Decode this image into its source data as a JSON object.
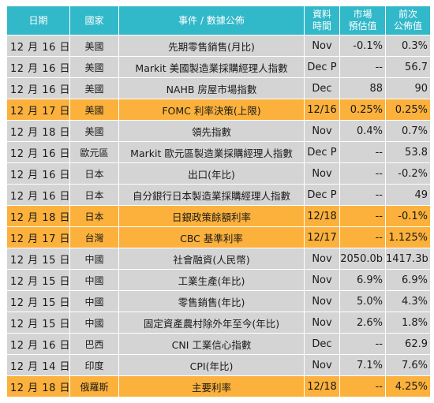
{
  "header": {
    "date": "日期",
    "country": "國家",
    "event": "事件 / 數據公佈",
    "period_line1": "資料",
    "period_line2": "時間",
    "forecast_line1": "市場",
    "forecast_line2": "預估值",
    "previous_line1": "前次",
    "previous_line2": "公佈值"
  },
  "colors": {
    "header_bg": "#31b8c9",
    "row_bg": "#d4d4d4",
    "highlight_bg": "#fbb13c"
  },
  "rows": [
    {
      "date": "12 月 16 日",
      "country": "美國",
      "event": "先期零售銷售(月比)",
      "period": "Nov",
      "forecast": "-0.1%",
      "previous": "0.3%",
      "highlight": false
    },
    {
      "date": "12 月 16 日",
      "country": "美國",
      "event": "Markit 美國製造業採購經理人指數",
      "period": "Dec P",
      "forecast": "--",
      "previous": "56.7",
      "highlight": false
    },
    {
      "date": "12 月 16 日",
      "country": "美國",
      "event": "NAHB 房屋市場指數",
      "period": "Dec",
      "forecast": "88",
      "previous": "90",
      "highlight": false
    },
    {
      "date": "12 月 17 日",
      "country": "美國",
      "event": "FOMC 利率決策(上限)",
      "period": "12/16",
      "forecast": "0.25%",
      "previous": "0.25%",
      "highlight": true
    },
    {
      "date": "12 月 18 日",
      "country": "美國",
      "event": "領先指數",
      "period": "Nov",
      "forecast": "0.4%",
      "previous": "0.7%",
      "highlight": false
    },
    {
      "date": "12 月 16 日",
      "country": "歐元區",
      "event": "Markit 歐元區製造業採購經理人指數",
      "period": "Dec P",
      "forecast": "--",
      "previous": "53.8",
      "highlight": false
    },
    {
      "date": "12 月 16 日",
      "country": "日本",
      "event": "出口(年比)",
      "period": "Nov",
      "forecast": "--",
      "previous": "-0.2%",
      "highlight": false
    },
    {
      "date": "12 月 16 日",
      "country": "日本",
      "event": "自分銀行日本製造業採購經理人指數",
      "period": "Dec P",
      "forecast": "--",
      "previous": "49",
      "highlight": false
    },
    {
      "date": "12 月 18 日",
      "country": "日本",
      "event": "日銀政策餘額利率",
      "period": "12/18",
      "forecast": "--",
      "previous": "-0.1%",
      "highlight": true
    },
    {
      "date": "12 月 17 日",
      "country": "台灣",
      "event": "CBC 基準利率",
      "period": "12/17",
      "forecast": "--",
      "previous": "1.125%",
      "highlight": true
    },
    {
      "date": "12 月 15 日",
      "country": "中國",
      "event": "社會融資(人民幣)",
      "period": "Nov",
      "forecast": "2050.0b",
      "previous": "1417.3b",
      "highlight": false
    },
    {
      "date": "12 月 15 日",
      "country": "中國",
      "event": "工業生產(年比)",
      "period": "Nov",
      "forecast": "6.9%",
      "previous": "6.9%",
      "highlight": false
    },
    {
      "date": "12 月 15 日",
      "country": "中國",
      "event": "零售銷售(年比)",
      "period": "Nov",
      "forecast": "5.0%",
      "previous": "4.3%",
      "highlight": false
    },
    {
      "date": "12 月 15 日",
      "country": "中國",
      "event": "固定資產農村除外年至今(年比)",
      "period": "Nov",
      "forecast": "2.6%",
      "previous": "1.8%",
      "highlight": false
    },
    {
      "date": "12 月 16 日",
      "country": "巴西",
      "event": "CNI 工業信心指數",
      "period": "Dec",
      "forecast": "--",
      "previous": "62.9",
      "highlight": false
    },
    {
      "date": "12 月 14 日",
      "country": "印度",
      "event": "CPI(年比)",
      "period": "Nov",
      "forecast": "7.1%",
      "previous": "7.6%",
      "highlight": false
    },
    {
      "date": "12 月 18 日",
      "country": "俄羅斯",
      "event": "主要利率",
      "period": "12/18",
      "forecast": "--",
      "previous": "4.25%",
      "highlight": true
    }
  ]
}
